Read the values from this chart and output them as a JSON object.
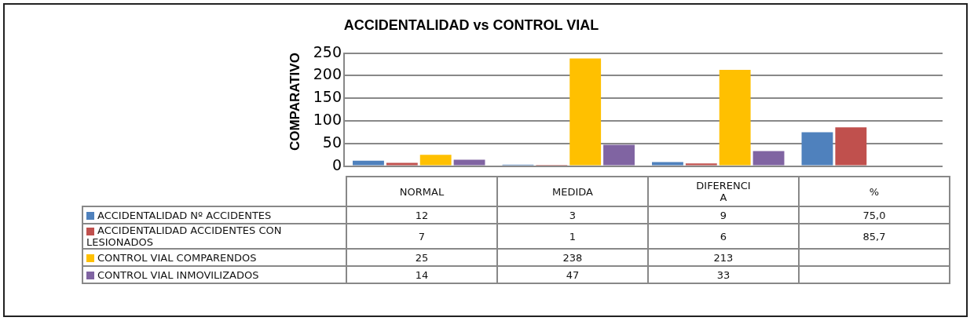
{
  "chart_data": {
    "type": "bar",
    "title": "ACCIDENTALIDAD vs CONTROL VIAL",
    "ylabel": "COMPARATIVO",
    "categories": [
      "NORMAL",
      "MEDIDA",
      "DIFERENCIA",
      "%"
    ],
    "series": [
      {
        "name": "ACCIDENTALIDAD Nº ACCIDENTES",
        "color": "#4f81bd",
        "values": [
          12,
          3,
          9,
          75.0
        ],
        "value_labels": [
          "12",
          "3",
          "9",
          "75,0"
        ]
      },
      {
        "name": "ACCIDENTALIDAD ACCIDENTES CON LESIONADOS",
        "color": "#c0504d",
        "values": [
          7,
          1,
          6,
          85.7
        ],
        "value_labels": [
          "7",
          "1",
          "6",
          "85,7"
        ]
      },
      {
        "name": "CONTROL VIAL COMPARENDOS",
        "color": "#ffc000",
        "values": [
          25,
          238,
          213,
          null
        ],
        "value_labels": [
          "25",
          "238",
          "213",
          null
        ]
      },
      {
        "name": "CONTROL VIAL INMOVILIZADOS",
        "color": "#8064a2",
        "values": [
          14,
          47,
          33,
          null
        ],
        "value_labels": [
          "14",
          "47",
          "33",
          null
        ]
      }
    ],
    "ylim": [
      0,
      250
    ],
    "yticks": [
      0,
      50,
      100,
      150,
      200,
      250
    ],
    "grid": "y",
    "legend": "bottom"
  }
}
